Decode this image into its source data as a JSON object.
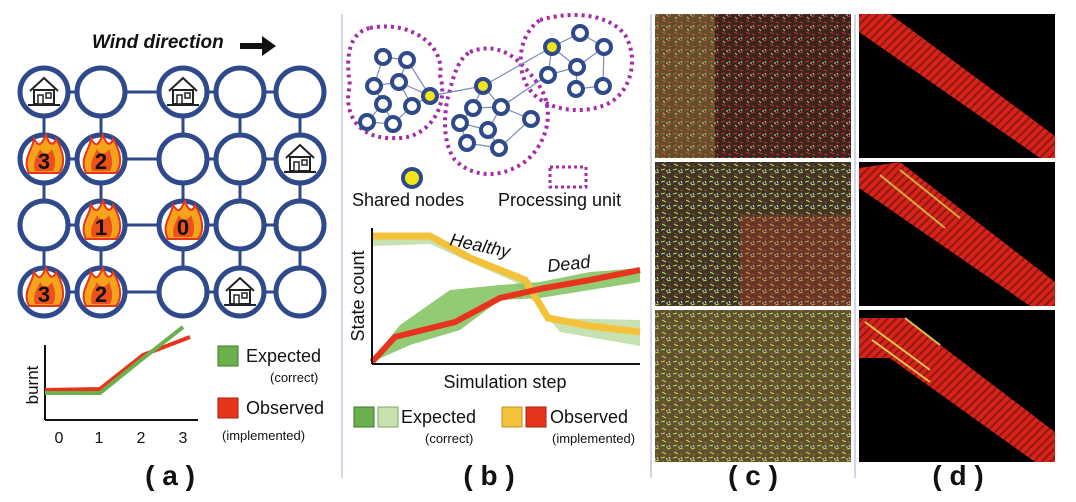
{
  "panel_a": {
    "wind_label": "Wind direction",
    "fire_numbers": [
      "3",
      "2",
      "1",
      "0",
      "3",
      "2"
    ],
    "axis_ylabel": "burnt",
    "axis_ticks": [
      "0",
      "1",
      "2",
      "3"
    ],
    "legend_expected": "Expected",
    "legend_expected_sub": "(correct)",
    "legend_observed": "Observed",
    "legend_observed_sub": "(implemented)",
    "caption": "( a )",
    "colors": {
      "grid": "#2e4a8a",
      "flame": "#f5a31a",
      "flame_inner": "#e8341c",
      "expected": "#6ab04c",
      "observed": "#e8341c"
    }
  },
  "panel_b": {
    "shared_nodes_label": "Shared nodes",
    "processing_unit_label": "Processing unit",
    "healthy_label": "Healthy",
    "dead_label": "Dead",
    "axis_ylabel": "State count",
    "axis_xlabel": "Simulation step",
    "legend_expected": "Expected",
    "legend_expected_sub": "(correct)",
    "legend_observed": "Observed",
    "legend_observed_sub": "(implemented)",
    "caption": "( b )",
    "colors": {
      "node": "#2e4a8a",
      "shared": "#f2e51a",
      "unit": "#a42ea8",
      "expected_dark": "#6ab04c",
      "expected_light": "#c6e2b0",
      "observed_yellow": "#f3c13a",
      "observed_red": "#e8341c"
    }
  },
  "panel_c": {
    "caption": "( c )"
  },
  "panel_d": {
    "caption": "( d )"
  }
}
